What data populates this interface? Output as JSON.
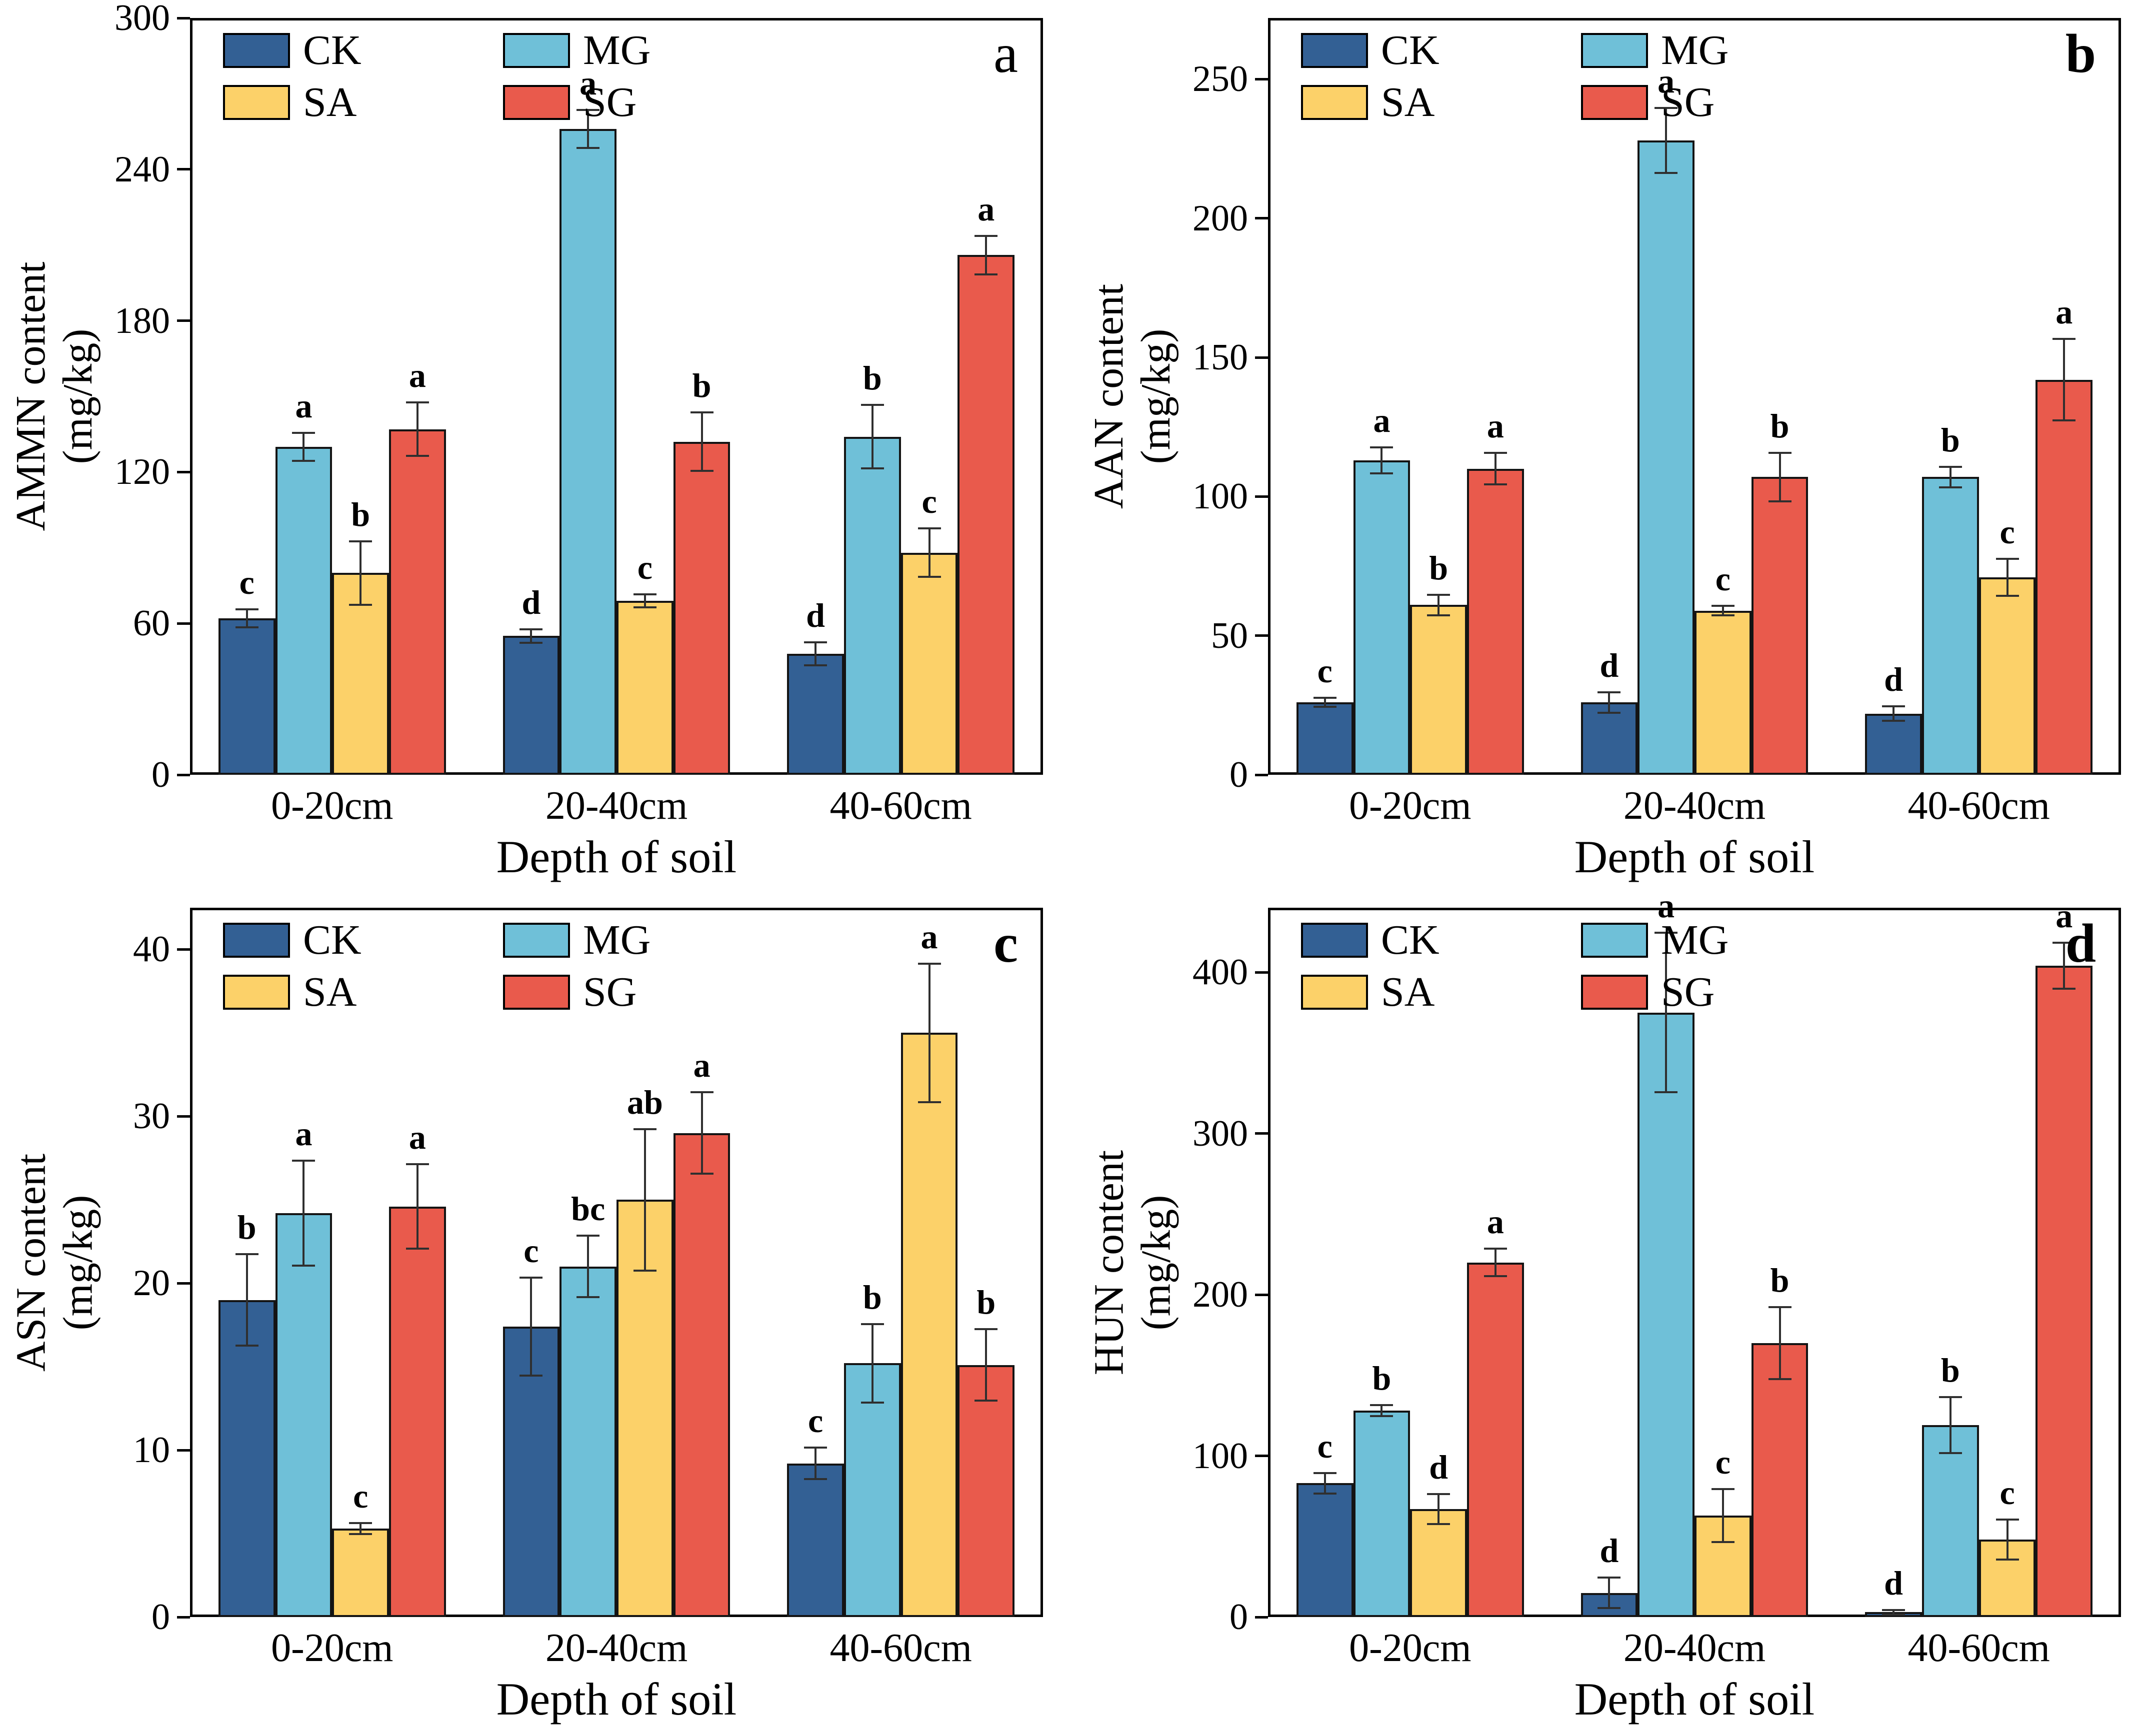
{
  "legend": {
    "items": [
      "CK",
      "MG",
      "SA",
      "SG"
    ]
  },
  "colors": {
    "CK": "#336094",
    "MG": "#6FC0D8",
    "SA": "#FCD169",
    "SG": "#E95A4C",
    "bar_border": "#141414",
    "error_bar": "#2F2F2F",
    "axis": "#000000",
    "text": "#000000"
  },
  "chart_data": [
    {
      "type": "bar",
      "panel_letter": "a",
      "ylabel": "AMMN content",
      "ylabel_unit": "(mg/kg)",
      "xlabel": "Depth of soil",
      "categories": [
        "0-20cm",
        "20-40cm",
        "40-60cm"
      ],
      "ylim": [
        0,
        300
      ],
      "yticks": [
        0,
        60,
        120,
        180,
        240,
        300
      ],
      "grid": false,
      "legend_position": "top-left",
      "series": [
        {
          "name": "CK",
          "values": [
            62,
            55,
            48
          ],
          "errors": [
            4,
            3,
            5
          ],
          "letters": [
            "c",
            "d",
            "d"
          ]
        },
        {
          "name": "MG",
          "values": [
            130,
            256,
            134
          ],
          "errors": [
            6,
            8,
            13
          ],
          "letters": [
            "a",
            "a",
            "b"
          ]
        },
        {
          "name": "SA",
          "values": [
            80,
            69,
            88
          ],
          "errors": [
            13,
            3,
            10
          ],
          "letters": [
            "b",
            "c",
            "c"
          ]
        },
        {
          "name": "SG",
          "values": [
            137,
            132,
            206
          ],
          "errors": [
            11,
            12,
            8
          ],
          "letters": [
            "a",
            "b",
            "a"
          ]
        }
      ]
    },
    {
      "type": "bar",
      "panel_letter": "b",
      "ylabel": "AAN content",
      "ylabel_unit": "(mg/kg)",
      "xlabel": "Depth of soil",
      "categories": [
        "0-20cm",
        "20-40cm",
        "40-60cm"
      ],
      "ylim": [
        0,
        272
      ],
      "yticks": [
        0,
        50,
        100,
        150,
        200,
        250
      ],
      "grid": false,
      "legend_position": "top-left",
      "series": [
        {
          "name": "CK",
          "values": [
            26,
            26,
            22
          ],
          "errors": [
            2,
            4,
            3
          ],
          "letters": [
            "c",
            "d",
            "d"
          ]
        },
        {
          "name": "MG",
          "values": [
            113,
            228,
            107
          ],
          "errors": [
            5,
            12,
            4
          ],
          "letters": [
            "a",
            "a",
            "b"
          ]
        },
        {
          "name": "SA",
          "values": [
            61,
            59,
            71
          ],
          "errors": [
            4,
            2,
            7
          ],
          "letters": [
            "b",
            "c",
            "c"
          ]
        },
        {
          "name": "SG",
          "values": [
            110,
            107,
            142
          ],
          "errors": [
            6,
            9,
            15
          ],
          "letters": [
            "a",
            "b",
            "a"
          ]
        }
      ]
    },
    {
      "type": "bar",
      "panel_letter": "c",
      "ylabel": "ASN content",
      "ylabel_unit": "(mg/kg)",
      "xlabel": "Depth of soil",
      "categories": [
        "0-20cm",
        "20-40cm",
        "40-60cm"
      ],
      "ylim": [
        0,
        42.5
      ],
      "yticks": [
        0,
        10,
        20,
        30,
        40
      ],
      "grid": false,
      "legend_position": "top-left",
      "series": [
        {
          "name": "CK",
          "values": [
            19,
            17.4,
            9.2
          ],
          "errors": [
            2.8,
            3,
            1
          ],
          "letters": [
            "b",
            "c",
            "c"
          ]
        },
        {
          "name": "MG",
          "values": [
            24.2,
            21,
            15.2
          ],
          "errors": [
            3.2,
            1.9,
            2.4
          ],
          "letters": [
            "a",
            "bc",
            "b"
          ]
        },
        {
          "name": "SA",
          "values": [
            5.3,
            25,
            35
          ],
          "errors": [
            0.4,
            4.3,
            4.2
          ],
          "letters": [
            "c",
            "ab",
            "a"
          ]
        },
        {
          "name": "SG",
          "values": [
            24.6,
            29,
            15.1
          ],
          "errors": [
            2.6,
            2.5,
            2.2
          ],
          "letters": [
            "a",
            "a",
            "b"
          ]
        }
      ]
    },
    {
      "type": "bar",
      "panel_letter": "d",
      "ylabel": "HUN content",
      "ylabel_unit": "(mg/kg)",
      "xlabel": "Depth of soil",
      "categories": [
        "0-20cm",
        "20-40cm",
        "40-60cm"
      ],
      "ylim": [
        0,
        440
      ],
      "yticks": [
        0,
        100,
        200,
        300,
        400
      ],
      "grid": false,
      "legend_position": "top-left",
      "series": [
        {
          "name": "CK",
          "values": [
            83,
            15,
            3
          ],
          "errors": [
            7,
            10,
            2
          ],
          "letters": [
            "c",
            "d",
            "d"
          ]
        },
        {
          "name": "MG",
          "values": [
            128,
            375,
            119
          ],
          "errors": [
            4,
            50,
            18
          ],
          "letters": [
            "b",
            "a",
            "b"
          ]
        },
        {
          "name": "SA",
          "values": [
            67,
            63,
            48
          ],
          "errors": [
            10,
            17,
            13
          ],
          "letters": [
            "d",
            "c",
            "c"
          ]
        },
        {
          "name": "SG",
          "values": [
            220,
            170,
            404
          ],
          "errors": [
            9,
            23,
            15
          ],
          "letters": [
            "a",
            "b",
            "a"
          ]
        }
      ]
    }
  ]
}
